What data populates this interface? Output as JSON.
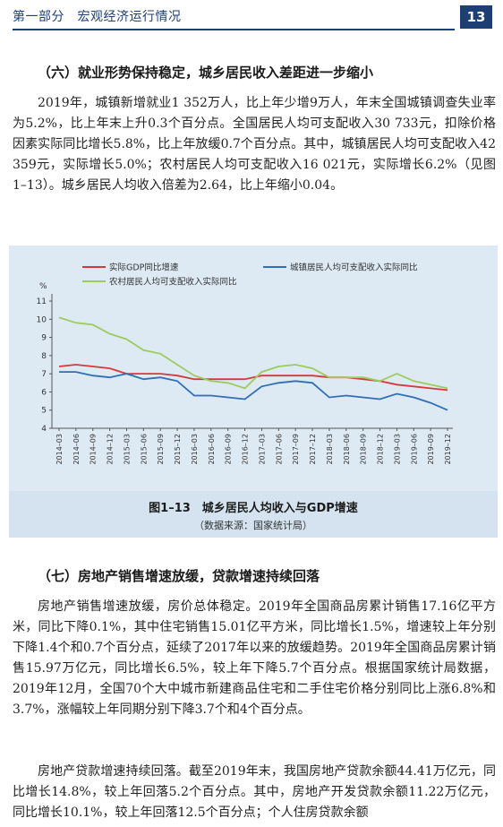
{
  "header": {
    "title": "第一部分　宏观经济运行情况",
    "page_number": "13"
  },
  "section6": {
    "heading": "（六）就业形势保持稳定，城乡居民收入差距进一步缩小",
    "paragraph": "2019年，城镇新增就业1 352万人，比上年少增9万人，年末全国城镇调查失业率为5.2%，比上年末上升0.3个百分点。全国居民人均可支配收入30 733元，扣除价格因素实际同比增长5.8%，比上年放缓0.7个百分点。其中，城镇居民人均可支配收入42 359元，实际增长5.0%；农村居民人均可支配收入16 021元，实际增长6.2%（见图1–13）。城乡居民人均收入倍差为2.64，比上年缩小0.04。"
  },
  "figure": {
    "caption_title": "图1–13　城乡居民人均收入与GDP增速",
    "caption_source": "（数据来源：国家统计局）"
  },
  "chart_data": {
    "type": "line",
    "title": "",
    "xlabel": "",
    "ylabel": "%",
    "ylim": [
      4,
      11
    ],
    "y_ticks": [
      "4",
      "5",
      "6",
      "7",
      "8",
      "9",
      "10",
      "11"
    ],
    "grid": false,
    "legend_position": "top",
    "categories": [
      "2014–03",
      "2014–06",
      "2014–09",
      "2014–12",
      "2015–03",
      "2015–06",
      "2015–09",
      "2015–12",
      "2016–03",
      "2016–06",
      "2016–09",
      "2016–12",
      "2017–03",
      "2017–06",
      "2017–09",
      "2017–12",
      "2018–03",
      "2018–06",
      "2018–09",
      "2018–12",
      "2019–03",
      "2019–06",
      "2019–09",
      "2019–12"
    ],
    "series": [
      {
        "name": "实际GDP同比增速",
        "color": "#d9383a",
        "values": [
          7.4,
          7.5,
          7.4,
          7.3,
          7.0,
          7.0,
          7.0,
          6.9,
          6.7,
          6.7,
          6.7,
          6.7,
          6.9,
          6.9,
          6.9,
          6.9,
          6.8,
          6.8,
          6.7,
          6.6,
          6.4,
          6.3,
          6.2,
          6.1
        ]
      },
      {
        "name": "城镇居民人均可支配收入实际同比",
        "color": "#2f6fb5",
        "values": [
          7.1,
          7.1,
          6.9,
          6.8,
          7.0,
          6.7,
          6.8,
          6.6,
          5.8,
          5.8,
          5.7,
          5.6,
          6.3,
          6.5,
          6.6,
          6.5,
          5.7,
          5.8,
          5.7,
          5.6,
          5.9,
          5.7,
          5.4,
          5.0
        ]
      },
      {
        "name": "农村居民人均可支配收入实际同比",
        "color": "#9ccb5e",
        "values": [
          10.1,
          9.8,
          9.7,
          9.2,
          8.9,
          8.3,
          8.1,
          7.5,
          6.9,
          6.6,
          6.5,
          6.2,
          7.1,
          7.4,
          7.5,
          7.3,
          6.8,
          6.8,
          6.8,
          6.6,
          7.0,
          6.6,
          6.4,
          6.2
        ]
      }
    ]
  },
  "section7": {
    "heading": "（七）房地产销售增速放缓，贷款增速持续回落",
    "paragraph1": "房地产销售增速放缓，房价总体稳定。2019年全国商品房累计销售17.16亿平方米，同比下降0.1%，其中住宅销售15.01亿平方米，同比增长1.5%，增速较上年分别下降1.4个和0.7个百分点，延续了2017年以来的放缓趋势。2019年全国商品房累计销售15.97万亿元，同比增长6.5%，较上年下降5.7个百分点。根据国家统计局数据，2019年12月，全国70个大中城市新建商品住宅和二手住宅价格分别同比上涨6.8%和3.7%，涨幅较上年同期分别下降3.7个和4个百分点。",
    "paragraph2": "房地产贷款增速持续回落。截至2019年末，我国房地产贷款余额44.41万亿元，同比增长14.8%，较上年回落5.2个百分点。其中，房地产开发贷款余额11.22万亿元，同比增长10.1%，较上年回落12.5个百分点；个人住房贷款余额"
  }
}
